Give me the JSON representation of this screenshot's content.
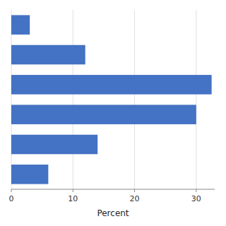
{
  "chart_data": {
    "type": "bar",
    "orientation": "horizontal",
    "categories": [
      null,
      null,
      null,
      null,
      null,
      null
    ],
    "values": [
      3.0,
      12.0,
      32.5,
      30.0,
      14.0,
      6.0
    ],
    "color": "#4472C4",
    "xlabel": "Percent",
    "xlim": [
      0,
      33
    ],
    "xticks": [
      0,
      10,
      20,
      30
    ],
    "grid": true,
    "tick_labels": "x"
  }
}
